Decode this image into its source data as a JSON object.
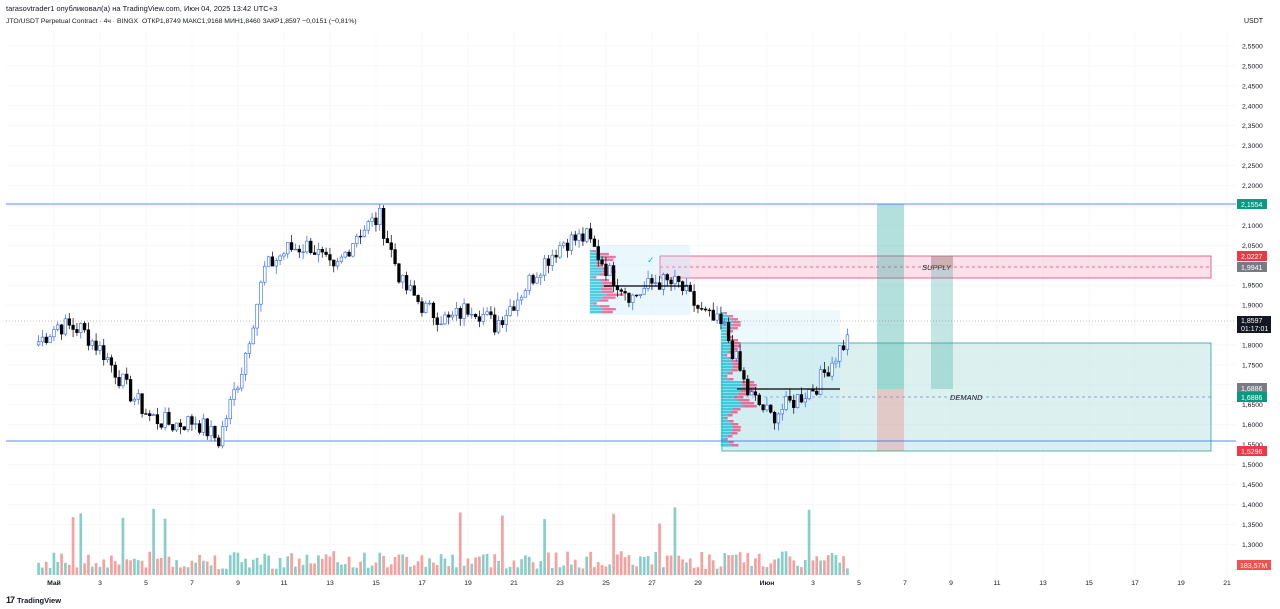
{
  "header": {
    "publisher_line": "tarasovtrader1 опубликовал(а) на TradingView.com, Июн 04, 2025 13:42 UTC+3",
    "symbol": "JTO/USDT Perpetual Contract · 4ч · BINGX",
    "open": "ОТКР1,8749",
    "high": "МАКС1,9168",
    "low": "МИН1,8460",
    "close": "ЗАКР1,8597",
    "change": "−0,0151 (−0,81%)"
  },
  "price_axis": {
    "unit": "USDT",
    "ticks": [
      "2,5500",
      "2,5000",
      "2,4500",
      "2,4000",
      "2,3500",
      "2,3000",
      "2,2500",
      "2,2000",
      "2,1500",
      "2,1000",
      "2,0500",
      "2,0000",
      "1,9500",
      "1,9000",
      "1,8500",
      "1,8000",
      "1,7500",
      "1,7000",
      "1,6500",
      "1,6000",
      "1,5500",
      "1,5000",
      "1,4500",
      "1,4000",
      "1,3500",
      "1,3000"
    ]
  },
  "time_axis": {
    "ticks": [
      "Май",
      "3",
      "5",
      "7",
      "9",
      "11",
      "13",
      "15",
      "17",
      "19",
      "21",
      "23",
      "25",
      "27",
      "29",
      "Июн",
      "3",
      "5",
      "7",
      "9",
      "11",
      "13",
      "15",
      "17",
      "19",
      "21"
    ]
  },
  "price_labels": {
    "resistance": "2,1554",
    "supply_top": "2,0227",
    "supply_mid": "1,9941",
    "last_price": "1,8597",
    "countdown": "01:17:01",
    "poc_1": "1,6886",
    "poc_2": "1,6886",
    "support": "1,5296",
    "volume": "183,57M"
  },
  "zones": {
    "supply_label": "SUPPLY",
    "demand_label": "DEMAND"
  },
  "colors": {
    "up": "#ffffff",
    "up_border": "#2962ff",
    "down": "#000000",
    "vol_up": "#26a69a",
    "vol_down": "#ef5350",
    "hline": "#2962ff",
    "supply_fill": "#f8bbd0",
    "demand_fill": "#b2dfdb",
    "last_price_bg": "#131722",
    "resistance_bg": "#089981",
    "support_bg": "#f23645"
  },
  "brand": {
    "logo": "17",
    "name": "TradingView"
  },
  "chart_data": {
    "type": "candlestick",
    "timeframe": "4h",
    "symbol": "JTO/USDT",
    "y_range": [
      1.23,
      2.58
    ],
    "x_range": [
      "2025-04-30",
      "2025-06-22"
    ],
    "ohlc_last": {
      "open": 1.8749,
      "high": 1.9168,
      "low": 1.846,
      "close": 1.8597
    },
    "horizontal_levels": [
      2.1554,
      1.5296
    ],
    "supply_zone": [
      1.9665,
      2.0227
    ],
    "demand_zone": [
      1.53,
      1.8
    ],
    "poc_level": 1.6886,
    "daily_closes": [
      [
        "2025-04-30",
        1.85
      ],
      [
        "2025-05-01",
        1.84
      ],
      [
        "2025-05-02",
        1.78
      ],
      [
        "2025-05-03",
        1.69
      ],
      [
        "2025-05-04",
        1.62
      ],
      [
        "2025-05-05",
        1.6
      ],
      [
        "2025-05-06",
        1.61
      ],
      [
        "2025-05-07",
        1.56
      ],
      [
        "2025-05-08",
        1.74
      ],
      [
        "2025-05-09",
        1.99
      ],
      [
        "2025-05-10",
        2.04
      ],
      [
        "2025-05-11",
        2.05
      ],
      [
        "2025-05-12",
        1.98
      ],
      [
        "2025-05-13",
        2.08
      ],
      [
        "2025-05-14",
        2.12
      ],
      [
        "2025-05-15",
        1.95
      ],
      [
        "2025-05-16",
        1.89
      ],
      [
        "2025-05-17",
        1.86
      ],
      [
        "2025-05-18",
        1.9
      ],
      [
        "2025-05-19",
        1.85
      ],
      [
        "2025-05-20",
        1.92
      ],
      [
        "2025-05-21",
        2.0
      ],
      [
        "2025-05-22",
        2.06
      ],
      [
        "2025-05-23",
        2.07
      ],
      [
        "2025-05-24",
        1.98
      ],
      [
        "2025-05-25",
        1.92
      ],
      [
        "2025-05-26",
        1.96
      ],
      [
        "2025-05-27",
        1.95
      ],
      [
        "2025-05-28",
        1.88
      ],
      [
        "2025-05-29",
        1.84
      ],
      [
        "2025-05-30",
        1.68
      ],
      [
        "2025-05-31",
        1.62
      ],
      [
        "2025-06-01",
        1.66
      ],
      [
        "2025-06-02",
        1.7
      ],
      [
        "2025-06-03",
        1.79
      ],
      [
        "2025-06-04",
        1.86
      ]
    ],
    "volume_max_label": "183,57M"
  }
}
